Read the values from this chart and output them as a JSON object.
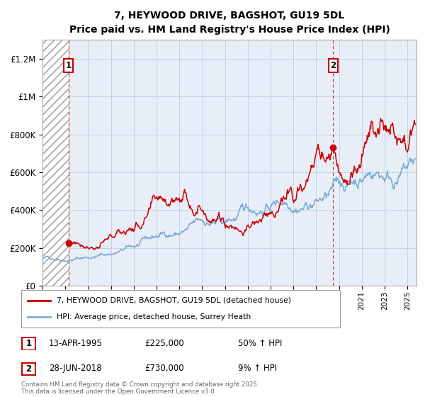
{
  "title": "7, HEYWOOD DRIVE, BAGSHOT, GU19 5DL",
  "subtitle": "Price paid vs. HM Land Registry's House Price Index (HPI)",
  "ytick_values": [
    0,
    200000,
    400000,
    600000,
    800000,
    1000000,
    1200000
  ],
  "ylim": [
    0,
    1300000
  ],
  "xlim_start": 1993.0,
  "xlim_end": 2025.8,
  "transaction1": {
    "date": 1995.28,
    "price": 225000,
    "label": "1"
  },
  "transaction2": {
    "date": 2018.49,
    "price": 730000,
    "label": "2"
  },
  "red_line_color": "#cc0000",
  "blue_line_color": "#7aacd4",
  "bg_plot_color": "#e8eef8",
  "grid_color": "#b8c8d8",
  "legend_label_red": "7, HEYWOOD DRIVE, BAGSHOT, GU19 5DL (detached house)",
  "legend_label_blue": "HPI: Average price, detached house, Surrey Heath",
  "footnote": "Contains HM Land Registry data © Crown copyright and database right 2025.\nThis data is licensed under the Open Government Licence v3.0.",
  "table_rows": [
    {
      "num": "1",
      "date": "13-APR-1995",
      "price": "£225,000",
      "pct": "50% ↑ HPI"
    },
    {
      "num": "2",
      "date": "28-JUN-2018",
      "price": "£730,000",
      "pct": "9% ↑ HPI"
    }
  ]
}
